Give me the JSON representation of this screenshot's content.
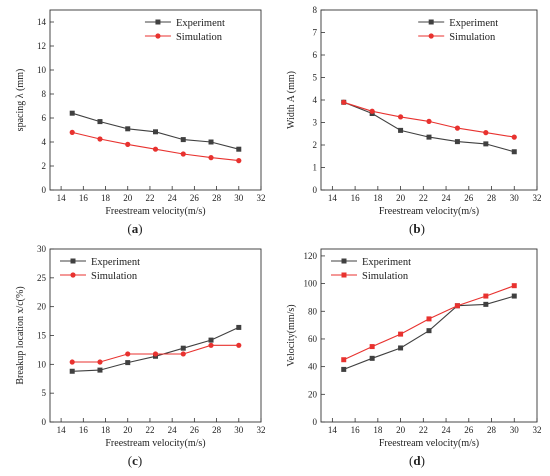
{
  "panels": [
    {
      "panel_label": "a",
      "chart_data": {
        "type": "line",
        "xlabel": "Freestream velocity(m/s)",
        "ylabel": "spacing λ (mm)",
        "xlim": [
          13,
          32
        ],
        "ylim": [
          0,
          15
        ],
        "xticks": [
          "14",
          "16",
          "18",
          "20",
          "22",
          "24",
          "26",
          "28",
          "30",
          "32"
        ],
        "yticks": [
          "0",
          "2",
          "4",
          "6",
          "8",
          "10",
          "12",
          "14"
        ],
        "legend_position": "top-right",
        "x": [
          15,
          17.5,
          20,
          22.5,
          25,
          27.5,
          30
        ],
        "series": [
          {
            "name": "Experiment",
            "color": "#404040",
            "marker": "square",
            "values": [
              6.4,
              5.7,
              5.1,
              4.85,
              4.2,
              4.0,
              3.4
            ]
          },
          {
            "name": "Simulation",
            "color": "#e8322f",
            "marker": "circle",
            "values": [
              4.8,
              4.25,
              3.8,
              3.4,
              3.0,
              2.7,
              2.45
            ]
          }
        ]
      }
    },
    {
      "panel_label": "b",
      "chart_data": {
        "type": "line",
        "xlabel": "Freestream velocity(m/s)",
        "ylabel": "Width A (mm)",
        "xlim": [
          13,
          32
        ],
        "ylim": [
          0,
          8
        ],
        "xticks": [
          "14",
          "16",
          "18",
          "20",
          "22",
          "24",
          "26",
          "28",
          "30",
          "32"
        ],
        "yticks": [
          "0",
          "1",
          "2",
          "3",
          "4",
          "5",
          "6",
          "7",
          "8"
        ],
        "legend_position": "top-right",
        "x": [
          15,
          17.5,
          20,
          22.5,
          25,
          27.5,
          30
        ],
        "series": [
          {
            "name": "Experiment",
            "color": "#404040",
            "marker": "square",
            "values": [
              3.9,
              3.4,
              2.65,
              2.35,
              2.15,
              2.05,
              1.7
            ]
          },
          {
            "name": "Simulation",
            "color": "#e8322f",
            "marker": "circle",
            "values": [
              3.9,
              3.5,
              3.25,
              3.05,
              2.75,
              2.55,
              2.35
            ]
          }
        ]
      }
    },
    {
      "panel_label": "c",
      "chart_data": {
        "type": "line",
        "xlabel": "Freestream velocity(m/s)",
        "ylabel": "Breakup location x/c(%)",
        "xlim": [
          13,
          32
        ],
        "ylim": [
          0,
          30
        ],
        "xticks": [
          "14",
          "16",
          "18",
          "20",
          "22",
          "24",
          "26",
          "28",
          "30",
          "32"
        ],
        "yticks": [
          "0",
          "5",
          "10",
          "15",
          "20",
          "25",
          "30"
        ],
        "legend_position": "top-left",
        "x": [
          15,
          17.5,
          20,
          22.5,
          25,
          27.5,
          30
        ],
        "series": [
          {
            "name": "Experiment",
            "color": "#404040",
            "marker": "square",
            "values": [
              8.8,
              9.0,
              10.3,
              11.4,
              12.8,
              14.2,
              16.4
            ]
          },
          {
            "name": "Simulation",
            "color": "#e8322f",
            "marker": "circle",
            "values": [
              10.4,
              10.4,
              11.8,
              11.8,
              11.8,
              13.3,
              13.3
            ]
          }
        ]
      }
    },
    {
      "panel_label": "d",
      "chart_data": {
        "type": "line",
        "xlabel": "Freestream velocity(m/s)",
        "ylabel": "Velocity(mm/s)",
        "xlim": [
          13,
          32
        ],
        "ylim": [
          0,
          125
        ],
        "xticks": [
          "14",
          "16",
          "18",
          "20",
          "22",
          "24",
          "26",
          "28",
          "30",
          "32"
        ],
        "yticks": [
          "0",
          "20",
          "40",
          "60",
          "80",
          "100",
          "120"
        ],
        "legend_position": "top-left",
        "x": [
          15,
          17.5,
          20,
          22.5,
          25,
          27.5,
          30
        ],
        "series": [
          {
            "name": "Experiment",
            "color": "#404040",
            "marker": "square",
            "values": [
              38,
              46,
              53.5,
              66,
              84,
              85,
              91
            ]
          },
          {
            "name": "Simulation",
            "color": "#e8322f",
            "marker": "square",
            "values": [
              45,
              54.5,
              63.5,
              74.5,
              84,
              91,
              98.5
            ]
          }
        ]
      }
    }
  ]
}
